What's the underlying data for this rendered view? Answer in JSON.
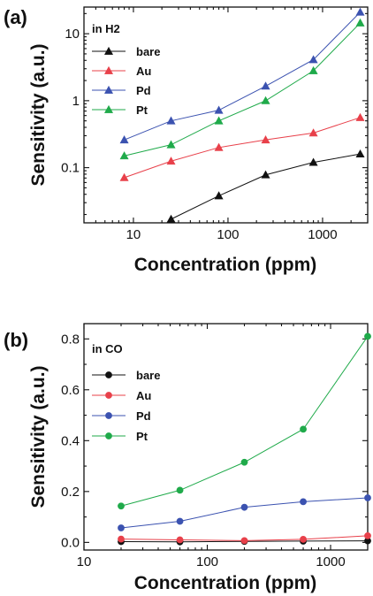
{
  "chart_data": [
    {
      "type": "line",
      "panel_label": "(a)",
      "legend_title": "in H2",
      "legend_placement": "top-left",
      "xlabel": "Concentration (ppm)",
      "ylabel": "Sensitivity (a.u.)",
      "xscale": "log",
      "yscale": "log",
      "xlim": [
        3,
        3000
      ],
      "ylim": [
        0.015,
        25
      ],
      "xticks": [
        10,
        100,
        1000
      ],
      "xtick_labels": [
        "10",
        "100",
        "1000"
      ],
      "yticks": [
        0.1,
        1,
        10
      ],
      "ytick_labels": [
        "0.1",
        "1",
        "10"
      ],
      "marker": "triangle",
      "grid": false,
      "series": [
        {
          "name": "bare",
          "color": "#111111",
          "x": [
            25,
            80,
            250,
            800,
            2500
          ],
          "y": [
            0.017,
            0.038,
            0.078,
            0.12,
            0.16
          ]
        },
        {
          "name": "Au",
          "color": "#e8404a",
          "x": [
            8,
            25,
            80,
            250,
            800,
            2500
          ],
          "y": [
            0.071,
            0.125,
            0.2,
            0.26,
            0.33,
            0.56
          ]
        },
        {
          "name": "Pd",
          "color": "#3b52b0",
          "x": [
            8,
            25,
            80,
            250,
            800,
            2500
          ],
          "y": [
            0.26,
            0.5,
            0.72,
            1.65,
            4.1,
            21
          ]
        },
        {
          "name": "Pt",
          "color": "#1faa4a",
          "x": [
            8,
            25,
            80,
            250,
            800,
            2500
          ],
          "y": [
            0.15,
            0.22,
            0.5,
            1.0,
            2.8,
            14.5
          ]
        }
      ]
    },
    {
      "type": "line",
      "panel_label": "(b)",
      "legend_title": "in CO",
      "legend_placement": "top-left",
      "xlabel": "Concentration (ppm)",
      "ylabel": "Sensitivity (a.u.)",
      "xscale": "log",
      "yscale": "linear",
      "xlim": [
        10,
        2000
      ],
      "ylim": [
        -0.03,
        0.86
      ],
      "xticks": [
        10,
        100,
        1000
      ],
      "xtick_labels": [
        "10",
        "100",
        "1000"
      ],
      "yticks": [
        0.0,
        0.2,
        0.4,
        0.6,
        0.8
      ],
      "ytick_labels": [
        "0.0",
        "0.2",
        "0.4",
        "0.6",
        "0.8"
      ],
      "marker": "circle",
      "grid": false,
      "series": [
        {
          "name": "bare",
          "color": "#111111",
          "x": [
            20,
            60,
            200,
            600,
            2000
          ],
          "y": [
            0.003,
            0.002,
            0.004,
            0.005,
            0.006
          ]
        },
        {
          "name": "Au",
          "color": "#e8404a",
          "x": [
            20,
            60,
            200,
            600,
            2000
          ],
          "y": [
            0.013,
            0.01,
            0.007,
            0.012,
            0.026
          ]
        },
        {
          "name": "Pd",
          "color": "#3b52b0",
          "x": [
            20,
            60,
            200,
            600,
            2000
          ],
          "y": [
            0.057,
            0.083,
            0.138,
            0.16,
            0.175
          ]
        },
        {
          "name": "Pt",
          "color": "#1faa4a",
          "x": [
            20,
            60,
            200,
            600,
            2000
          ],
          "y": [
            0.143,
            0.205,
            0.315,
            0.445,
            0.81
          ]
        }
      ]
    }
  ]
}
